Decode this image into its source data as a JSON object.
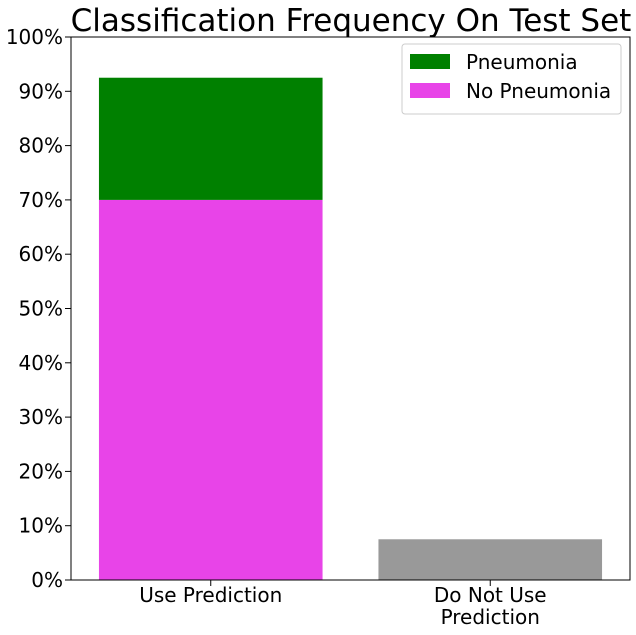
{
  "chart_data": {
    "type": "bar",
    "stacked": true,
    "title": "Classification Frequency On Test Set",
    "xlabel": "",
    "ylabel": "",
    "ylim": [
      0,
      100
    ],
    "y_ticks": [
      "0%",
      "10%",
      "20%",
      "30%",
      "40%",
      "50%",
      "60%",
      "70%",
      "80%",
      "90%",
      "100%"
    ],
    "categories": [
      [
        "Use Prediction"
      ],
      [
        "Do Not Use",
        "Prediction"
      ]
    ],
    "series": [
      {
        "name": "No Pneumonia",
        "color": "#e844e8",
        "values": [
          70.0,
          0
        ]
      },
      {
        "name": "Pneumonia",
        "color": "#008000",
        "values": [
          22.5,
          0
        ]
      },
      {
        "name": "",
        "color": "#999999",
        "values": [
          0,
          7.5
        ]
      }
    ],
    "legend": {
      "position": "top-right",
      "entries": [
        {
          "label": "Pneumonia",
          "color": "#008000"
        },
        {
          "label": "No Pneumonia",
          "color": "#e844e8"
        }
      ]
    },
    "grid": false
  }
}
